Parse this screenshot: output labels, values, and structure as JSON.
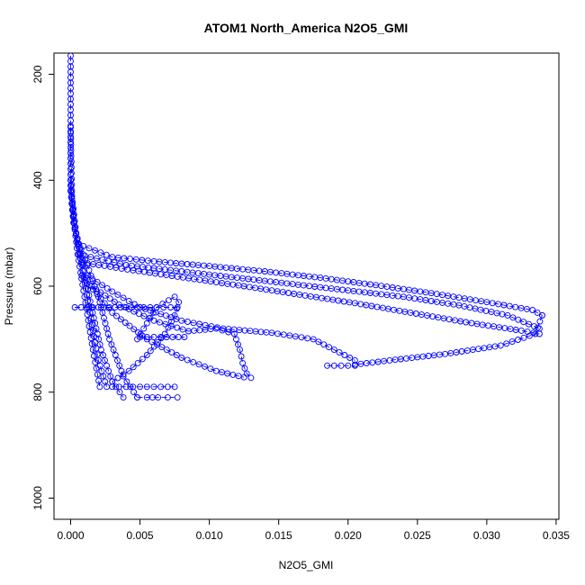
{
  "chart_data": {
    "type": "scatter",
    "title": "ATOM1 North_America N2O5_GMI",
    "xlabel": "N2O5_GMI",
    "ylabel": "Pressure (mbar)",
    "xlim": [
      -0.0012,
      0.0352
    ],
    "ylim": [
      1040,
      160
    ],
    "y_reversed": true,
    "grid": false,
    "legend": "none",
    "x_ticks": [
      {
        "value": 0.0,
        "label": "0.000"
      },
      {
        "value": 0.005,
        "label": "0.005"
      },
      {
        "value": 0.01,
        "label": "0.010"
      },
      {
        "value": 0.015,
        "label": "0.015"
      },
      {
        "value": 0.02,
        "label": "0.020"
      },
      {
        "value": 0.025,
        "label": "0.025"
      },
      {
        "value": 0.03,
        "label": "0.030"
      },
      {
        "value": 0.035,
        "label": "0.035"
      }
    ],
    "y_ticks": [
      {
        "value": 200,
        "label": "200"
      },
      {
        "value": 400,
        "label": "400"
      },
      {
        "value": 600,
        "label": "600"
      },
      {
        "value": 800,
        "label": "800"
      },
      {
        "value": 1000,
        "label": "1000"
      }
    ],
    "marker": "open-circle",
    "color": "#0000ff",
    "profiles": [
      {
        "x": [
          0.0,
          0.0,
          0.0002,
          0.0006,
          0.0012,
          0.002,
          0.0028,
          0.0038,
          0.0048
        ],
        "y": [
          165,
          420,
          480,
          520,
          560,
          620,
          700,
          770,
          810
        ]
      },
      {
        "x": [
          0.0,
          0.0001,
          0.0004,
          0.0009,
          0.0015,
          0.0022,
          0.003,
          0.0038
        ],
        "y": [
          300,
          430,
          500,
          560,
          640,
          720,
          780,
          810
        ]
      },
      {
        "x": [
          0.0,
          0.0002,
          0.0005,
          0.001,
          0.0016,
          0.0021
        ],
        "y": [
          400,
          470,
          540,
          620,
          720,
          790
        ]
      },
      {
        "x": [
          0.0,
          0.0003,
          0.0008,
          0.0014,
          0.002,
          0.0026
        ],
        "y": [
          420,
          490,
          560,
          650,
          740,
          790
        ]
      },
      {
        "x": [
          0.0003,
          0.0012,
          0.0024,
          0.0036,
          0.0048,
          0.0062,
          0.0077
        ],
        "y": [
          640,
          640,
          640,
          640,
          640,
          640,
          640
        ]
      },
      {
        "x": [
          0.0048,
          0.0055,
          0.0063,
          0.007,
          0.0077
        ],
        "y": [
          810,
          810,
          810,
          810,
          810
        ]
      },
      {
        "x": [
          0.003,
          0.004,
          0.005,
          0.006,
          0.0075
        ],
        "y": [
          790,
          790,
          790,
          790,
          790
        ]
      },
      {
        "x": [
          0.003,
          0.0042,
          0.0055,
          0.0068,
          0.0075,
          0.0078,
          0.0075,
          0.0062,
          0.0048
        ],
        "y": [
          780,
          760,
          730,
          690,
          655,
          630,
          620,
          640,
          700
        ]
      },
      {
        "x": [
          0.005,
          0.0065,
          0.0082
        ],
        "y": [
          696,
          696,
          696
        ]
      },
      {
        "x": [
          0.0015,
          0.0035,
          0.006,
          0.0085,
          0.0105,
          0.0118,
          0.0122,
          0.0124,
          0.0127,
          0.013
        ],
        "y": [
          600,
          635,
          665,
          685,
          680,
          690,
          720,
          745,
          765,
          773
        ]
      },
      {
        "x": [
          0.0008,
          0.003,
          0.0055,
          0.008,
          0.0105,
          0.0125
        ],
        "y": [
          580,
          650,
          700,
          735,
          760,
          772
        ]
      },
      {
        "x": [
          0.0005,
          0.003,
          0.006,
          0.01,
          0.014,
          0.018,
          0.022,
          0.026,
          0.03,
          0.0333,
          0.034
        ],
        "y": [
          520,
          545,
          553,
          562,
          572,
          584,
          598,
          613,
          630,
          645,
          655
        ]
      },
      {
        "x": [
          0.0006,
          0.004,
          0.008,
          0.012,
          0.016,
          0.02,
          0.024,
          0.028,
          0.0315,
          0.0338
        ],
        "y": [
          540,
          560,
          572,
          584,
          596,
          608,
          620,
          636,
          655,
          680
        ]
      },
      {
        "x": [
          0.0008,
          0.0045,
          0.0085,
          0.0125,
          0.0165,
          0.0205,
          0.0245,
          0.0285,
          0.0325,
          0.0338
        ],
        "y": [
          555,
          570,
          585,
          600,
          616,
          632,
          650,
          668,
          684,
          690
        ]
      },
      {
        "x": [
          0.034,
          0.0335,
          0.031,
          0.027,
          0.023,
          0.0205
        ],
        "y": [
          655,
          690,
          712,
          728,
          740,
          748
        ]
      },
      {
        "x": [
          0.0185,
          0.0195,
          0.0205
        ],
        "y": [
          750,
          750,
          750
        ]
      },
      {
        "x": [
          0.0012,
          0.003,
          0.005,
          0.008,
          0.011,
          0.0145,
          0.0175,
          0.0205
        ],
        "y": [
          580,
          610,
          640,
          665,
          680,
          688,
          700,
          740
        ]
      }
    ]
  }
}
